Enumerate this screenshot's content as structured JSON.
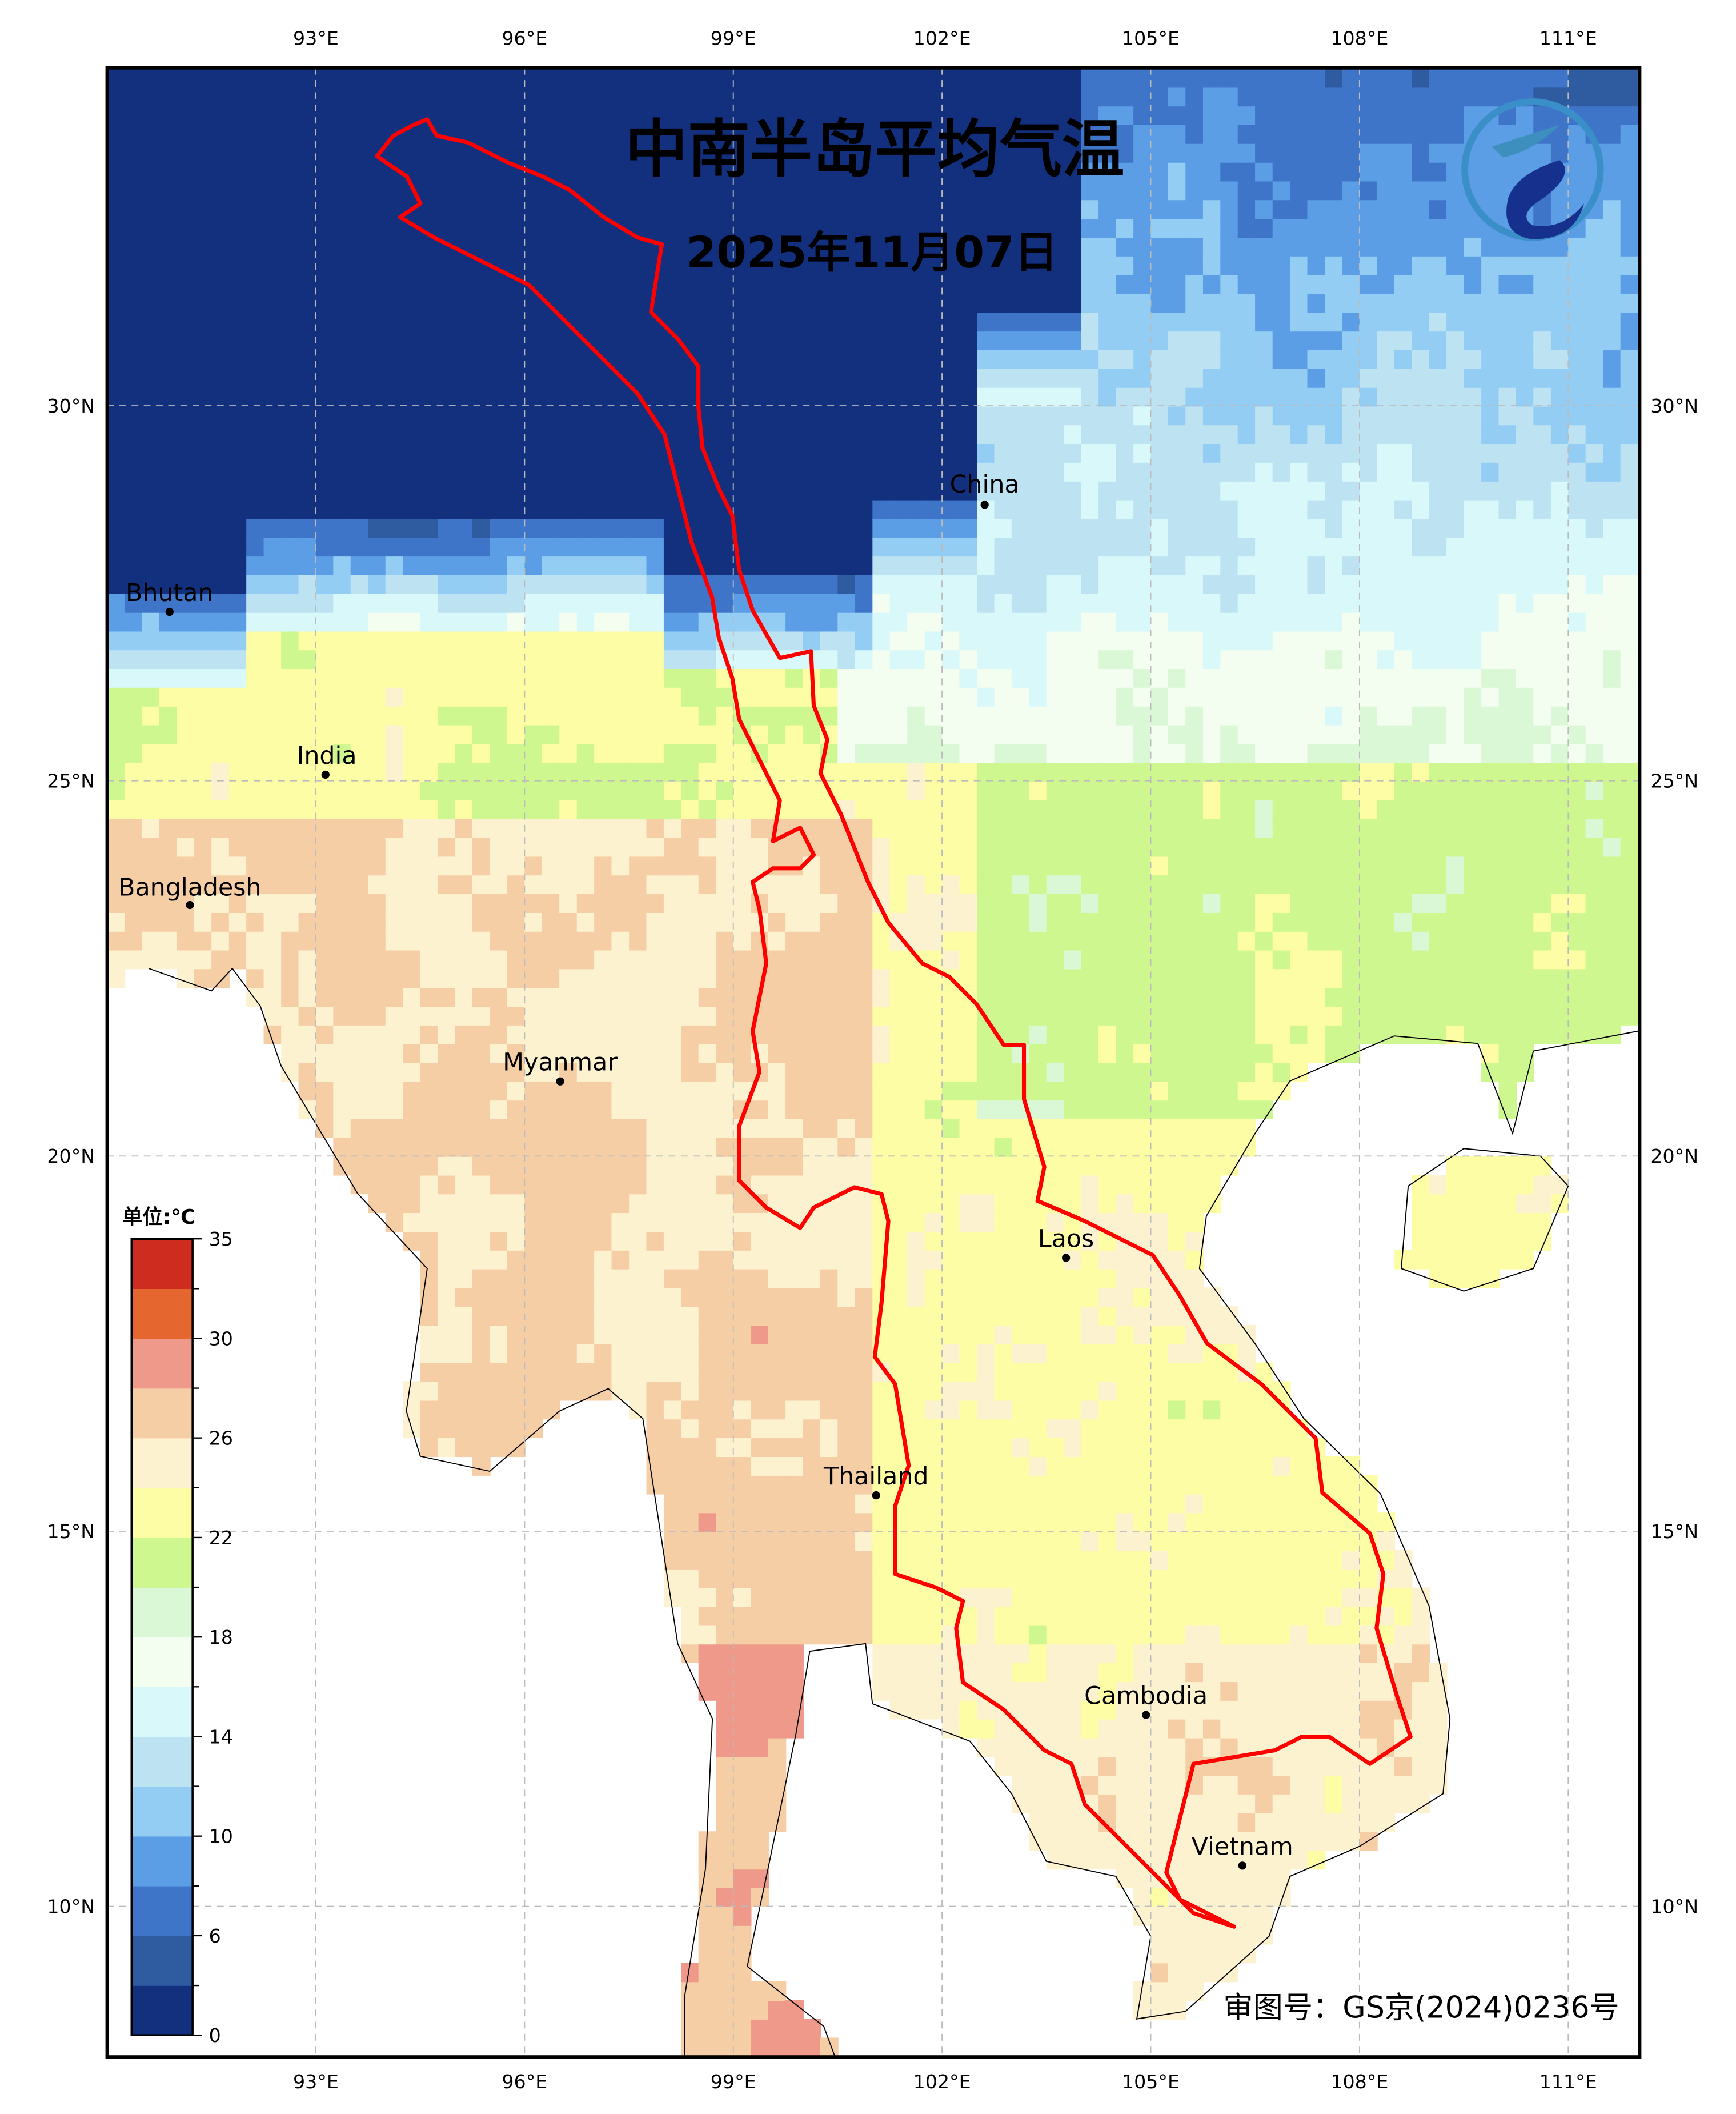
{
  "title": "中南半岛平均气温",
  "date": "2025年11月07日",
  "approval_number": "审图号：GS京(2024)0236号",
  "logo": "dragon-emblem-logo",
  "axes": {
    "longitude_labels": [
      "93°E",
      "96°E",
      "99°E",
      "102°E",
      "105°E",
      "108°E",
      "111°E"
    ],
    "latitude_labels": [
      "30°N",
      "25°N",
      "20°N",
      "15°N",
      "10°N"
    ]
  },
  "colorbar": {
    "unit_label": "单位:℃",
    "levels": [
      0,
      3,
      6,
      8,
      10,
      12,
      14,
      16,
      18,
      20,
      22,
      24,
      26,
      28,
      30,
      32,
      35
    ],
    "tick_labels": [
      "0",
      "6",
      "10",
      "14",
      "18",
      "22",
      "26",
      "30",
      "35"
    ],
    "colors": [
      "#13307F",
      "#2F5BA0",
      "#3E75C9",
      "#5B9EE6",
      "#93CDF4",
      "#BDE3F3",
      "#D8F8FA",
      "#F3FDF0",
      "#DBF8D6",
      "#CEF78F",
      "#FDFDA5",
      "#FDF2D0",
      "#F6CEA6",
      "#EE998A",
      "#E5662F",
      "#CD2C1F"
    ]
  },
  "basin_outline_color": "#FF0000",
  "places": [
    {
      "name": "China"
    },
    {
      "name": "Bhutan"
    },
    {
      "name": "India"
    },
    {
      "name": "Bangladesh"
    },
    {
      "name": "Myanmar"
    },
    {
      "name": "Laos"
    },
    {
      "name": "Thailand"
    },
    {
      "name": "Cambodia"
    },
    {
      "name": "Vietnam"
    }
  ]
}
